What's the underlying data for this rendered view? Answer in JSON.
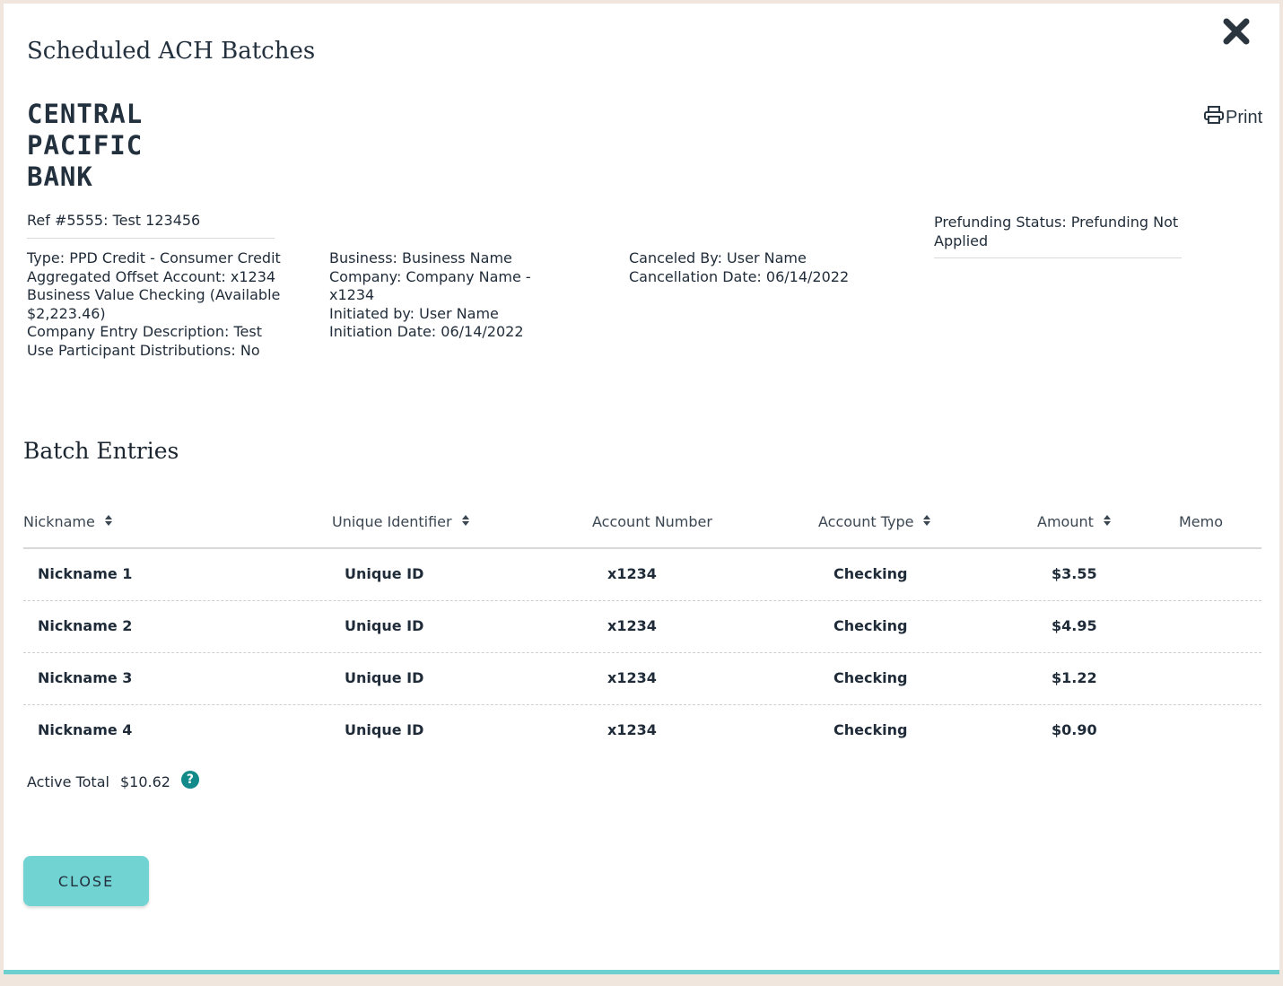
{
  "modal": {
    "title": "Scheduled ACH Batches",
    "print_label": "Print",
    "close_button_label": "CLOSE"
  },
  "logo": {
    "line1": "CENTRAL",
    "line2": "PACIFIC",
    "line3": "BANK"
  },
  "batch": {
    "ref": "Ref #5555: Test 123456",
    "col1": [
      "Type: PPD Credit - Consumer Credit",
      "Aggregated Offset Account: x1234 Business Value Checking (Available $2,223.46)",
      "Company Entry Description: Test",
      "Use Participant Distributions: No"
    ],
    "col2": [
      "Business: Business Name",
      "Company: Company Name - x1234",
      "Initiated by: User Name",
      "Initiation Date: 06/14/2022"
    ],
    "col3": [
      "Canceled By: User Name",
      "Cancellation Date: 06/14/2022"
    ],
    "prefunding_status": "Prefunding Status: Prefunding Not Applied"
  },
  "entries": {
    "title": "Batch Entries",
    "headers": {
      "nickname": "Nickname",
      "unique_identifier": "Unique Identifier",
      "account_number": "Account Number",
      "account_type": "Account Type",
      "amount": "Amount",
      "memo": "Memo"
    },
    "rows": [
      {
        "nickname": "Nickname 1",
        "unique_id": "Unique ID",
        "account_number": "x1234",
        "account_type": "Checking",
        "amount": "$3.55",
        "memo": ""
      },
      {
        "nickname": "Nickname 2",
        "unique_id": "Unique ID",
        "account_number": "x1234",
        "account_type": "Checking",
        "amount": "$4.95",
        "memo": ""
      },
      {
        "nickname": "Nickname 3",
        "unique_id": "Unique ID",
        "account_number": "x1234",
        "account_type": "Checking",
        "amount": "$1.22",
        "memo": ""
      },
      {
        "nickname": "Nickname 4",
        "unique_id": "Unique ID",
        "account_number": "x1234",
        "account_type": "Checking",
        "amount": "$0.90",
        "memo": ""
      }
    ],
    "total_label": "Active Total",
    "total_value": "$10.62"
  },
  "icons": {
    "close": "close-icon",
    "print": "printer-icon",
    "sort": "sort-icon",
    "help": "help-icon"
  },
  "colors": {
    "accent": "#72d3d3",
    "help": "#138a8a",
    "text": "#1f2b38"
  }
}
